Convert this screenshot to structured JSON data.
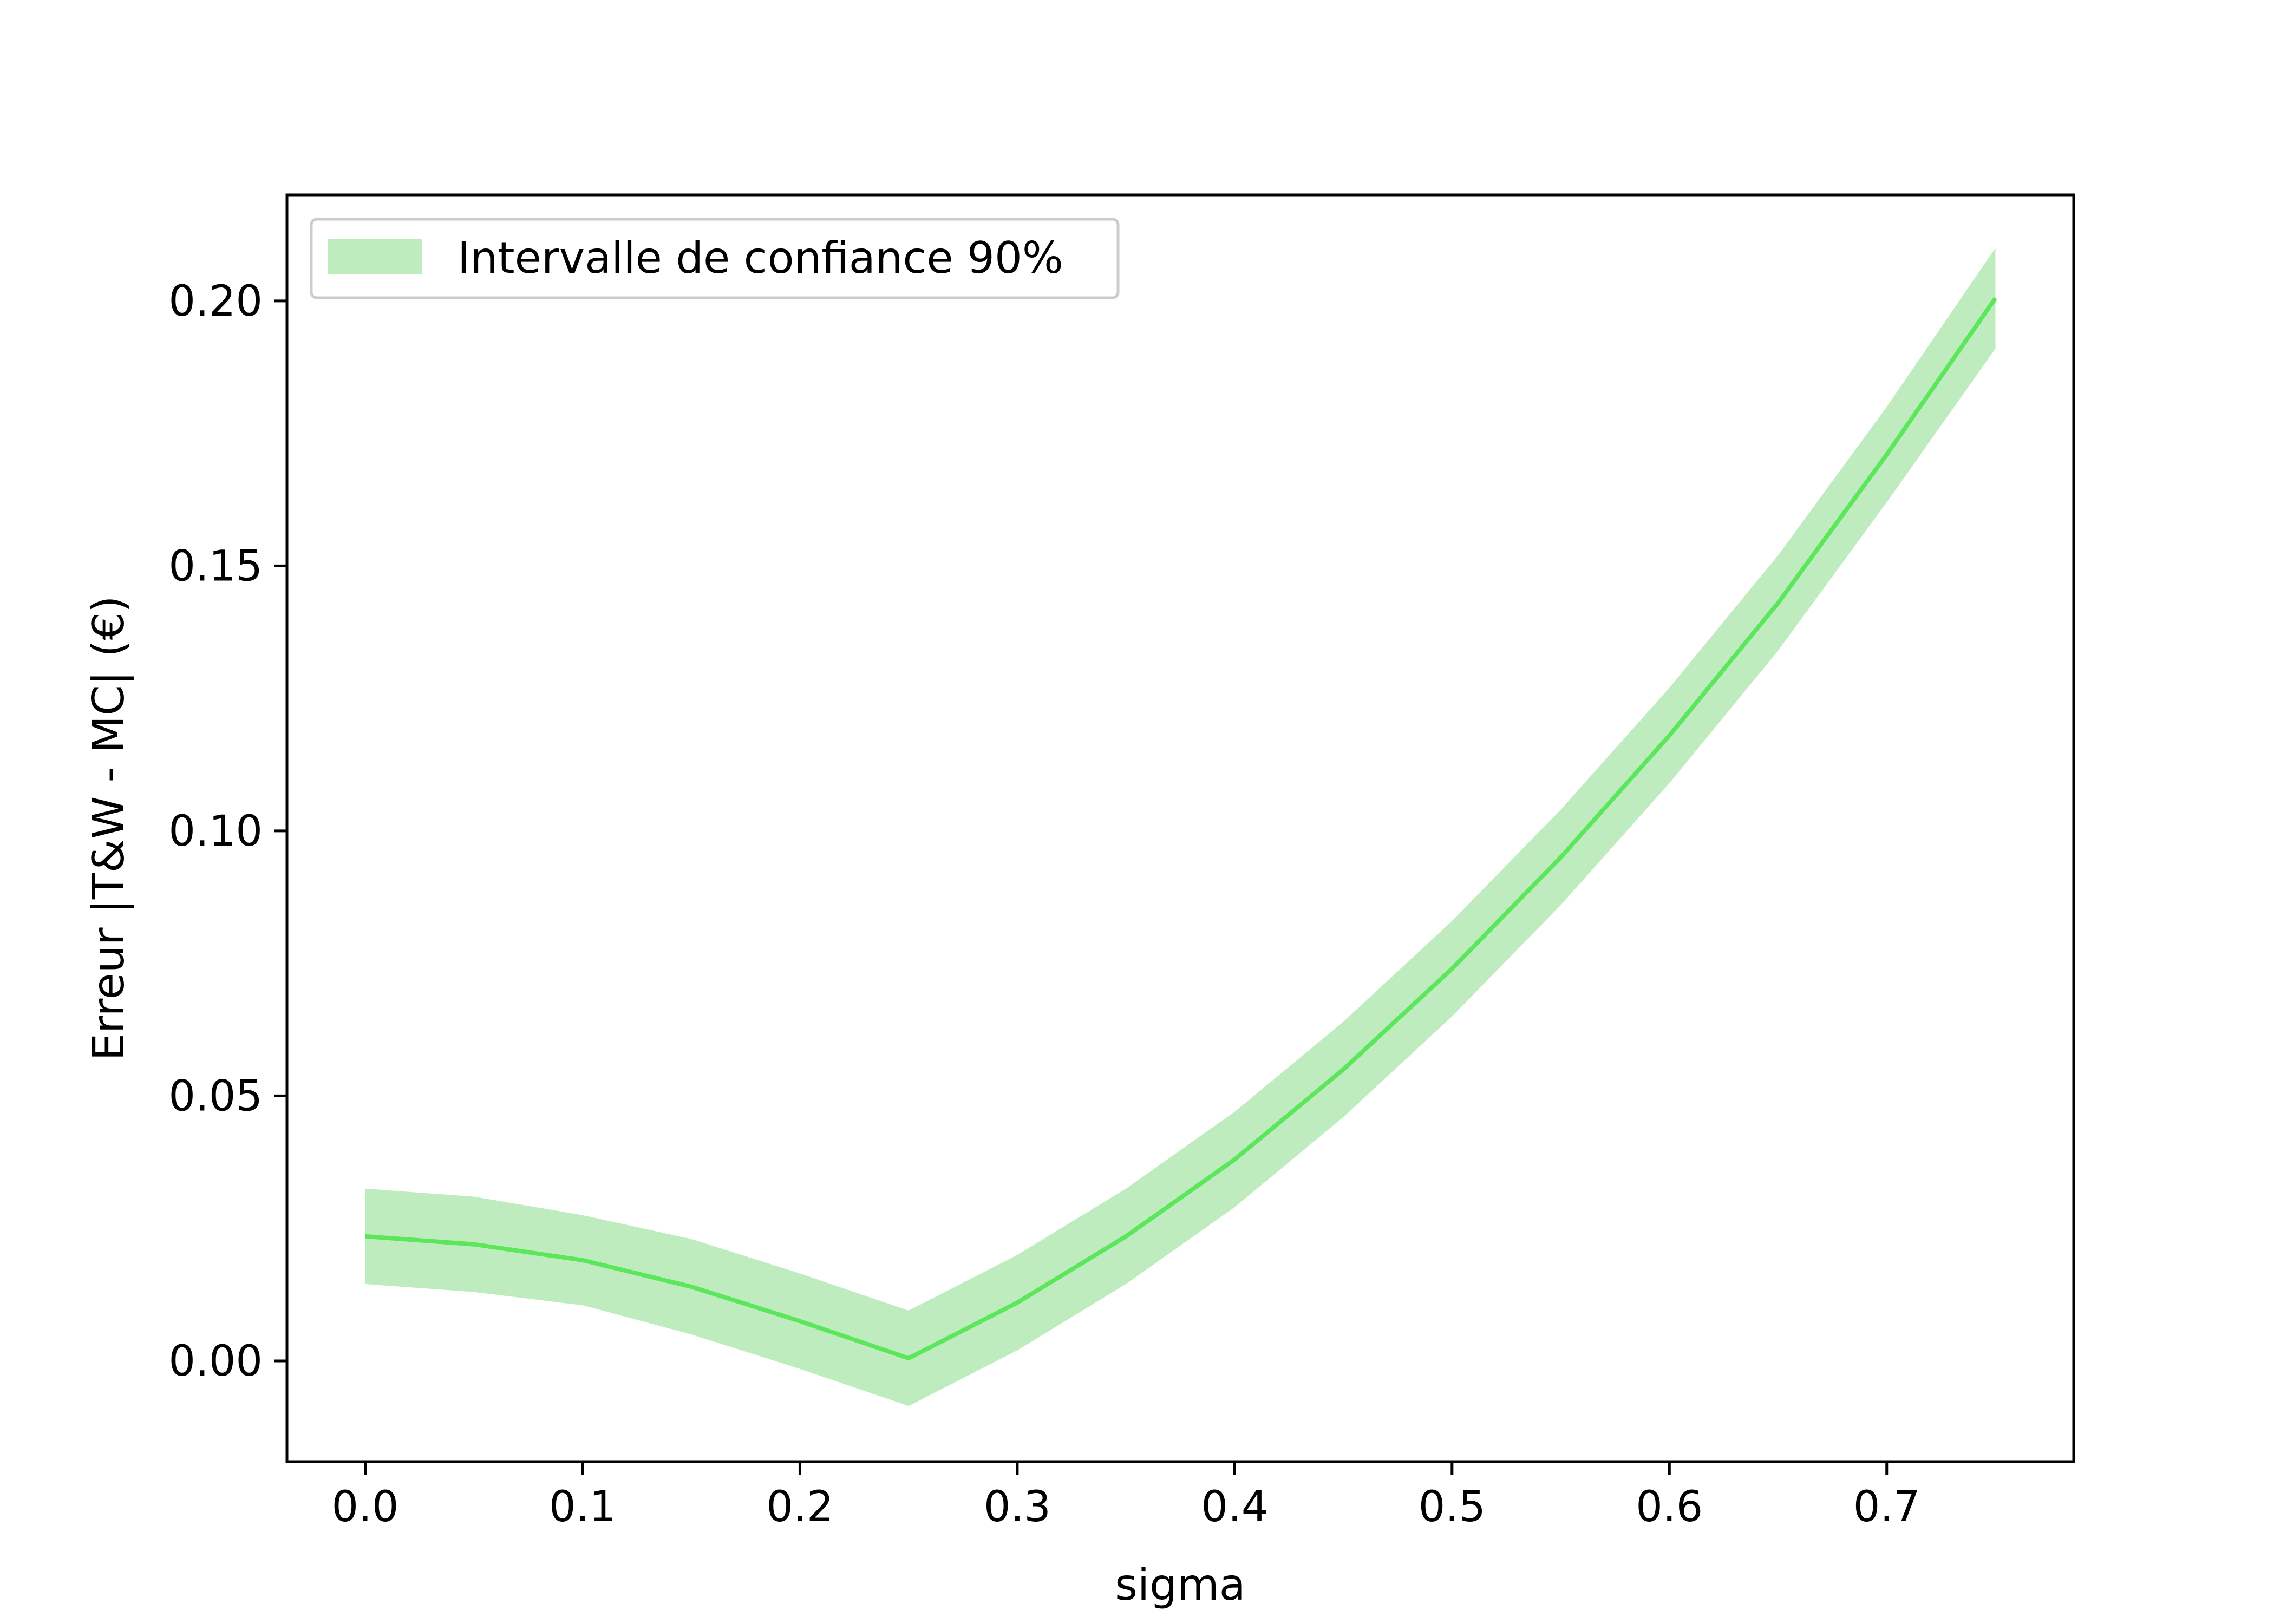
{
  "colors": {
    "line": "#5ce65c",
    "band": "#a8e6a8",
    "axis": "#000000"
  },
  "chart_data": {
    "type": "line",
    "xlabel": "sigma",
    "ylabel": "Erreur |T&W - MC| (€)",
    "xlim": [
      -0.036,
      0.786
    ],
    "ylim": [
      -0.019,
      0.22
    ],
    "xticks": [
      0.0,
      0.1,
      0.2,
      0.3,
      0.4,
      0.5,
      0.6,
      0.7
    ],
    "xtick_labels": [
      "0.0",
      "0.1",
      "0.2",
      "0.3",
      "0.4",
      "0.5",
      "0.6",
      "0.7"
    ],
    "yticks": [
      0.0,
      0.05,
      0.1,
      0.15,
      0.2
    ],
    "ytick_labels": [
      "0.00",
      "0.05",
      "0.10",
      "0.15",
      "0.20"
    ],
    "grid": false,
    "legend_position": "top-left",
    "legend": [
      "Intervalle de confiance 90%"
    ],
    "x": [
      0.0,
      0.05,
      0.1,
      0.15,
      0.2,
      0.25,
      0.3,
      0.35,
      0.4,
      0.45,
      0.5,
      0.55,
      0.6,
      0.65,
      0.7,
      0.75
    ],
    "series": [
      {
        "values": [
          0.0235,
          0.022,
          0.019,
          0.014,
          0.0075,
          0.0005,
          0.011,
          0.0235,
          0.038,
          0.055,
          0.074,
          0.095,
          0.118,
          0.143,
          0.171,
          0.2005
        ]
      }
    ],
    "band": {
      "name": "Intervalle de confiance 90%",
      "lower": [
        0.0145,
        0.013,
        0.0105,
        0.005,
        -0.0015,
        -0.0085,
        0.002,
        0.0145,
        0.029,
        0.046,
        0.065,
        0.086,
        0.109,
        0.134,
        0.162,
        0.191
      ],
      "upper": [
        0.0325,
        0.031,
        0.0275,
        0.023,
        0.0165,
        0.0095,
        0.02,
        0.0325,
        0.047,
        0.064,
        0.083,
        0.104,
        0.127,
        0.152,
        0.18,
        0.21
      ]
    }
  }
}
